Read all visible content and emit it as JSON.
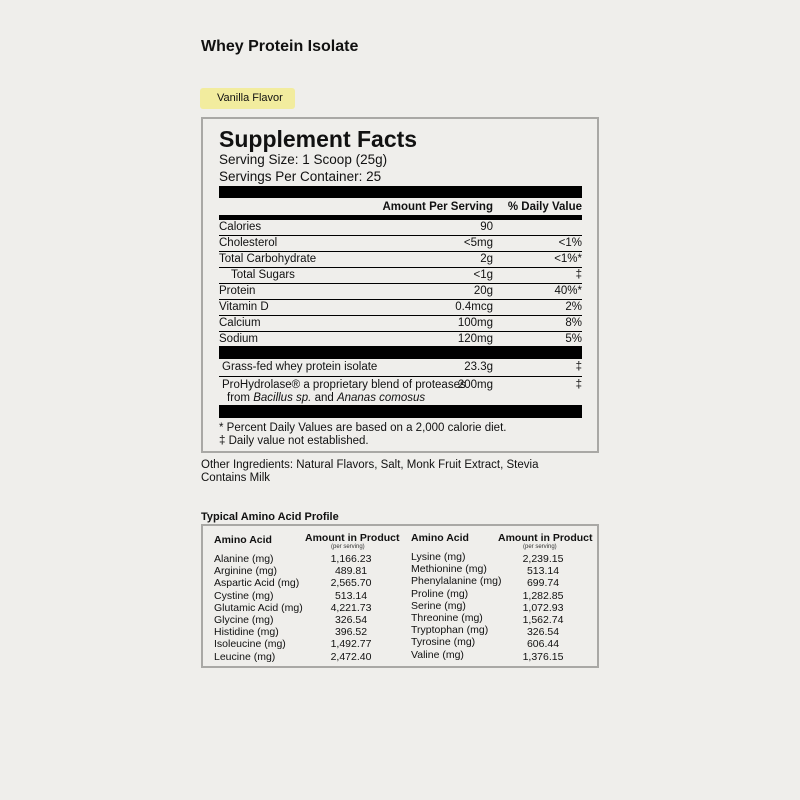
{
  "title": "Whey Protein Isolate",
  "flavor": "Vanilla Flavor",
  "facts": {
    "heading": "Supplement Facts",
    "serving_size": "Serving Size: 1 Scoop (25g)",
    "servings_per_container": "Servings Per Container: 25",
    "col_amount": "Amount Per Serving",
    "col_dv": "% Daily Value",
    "rows": [
      {
        "name": "Calories",
        "amount": "90",
        "dv": ""
      },
      {
        "name": "Cholesterol",
        "amount": "<5mg",
        "dv": "<1%"
      },
      {
        "name": "Total Carbohydrate",
        "amount": "2g",
        "dv": "<1%*"
      },
      {
        "name": "Total Sugars",
        "amount": "<1g",
        "dv": "‡"
      },
      {
        "name": "Protein",
        "amount": "20g",
        "dv": "40%*"
      },
      {
        "name": "Vitamin D",
        "amount": "0.4mcg",
        "dv": "2%"
      },
      {
        "name": "Calcium",
        "amount": "100mg",
        "dv": "8%"
      },
      {
        "name": "Sodium",
        "amount": "120mg",
        "dv": "5%"
      }
    ],
    "blend_rows": [
      {
        "name": "Grass-fed whey protein isolate",
        "amount": "23.3g",
        "dv": "‡"
      },
      {
        "name": "ProHydrolase® a proprietary blend of proteases",
        "name_line2_pre": "from ",
        "species1": "Bacillus sp.",
        "name_line2_mid": " and ",
        "species2": "Ananas comosus",
        "amount": "200mg",
        "dv": "‡"
      }
    ],
    "footnote1": "* Percent Daily Values are based on a 2,000 calorie diet.",
    "footnote2": "‡ Daily value not established."
  },
  "other_ingredients": "Other Ingredients: Natural Flavors, Salt, Monk Fruit Extract, Stevia",
  "allergen": "Contains Milk",
  "amino": {
    "title": "Typical Amino Acid Profile",
    "col_name": "Amino Acid",
    "col_amount": "Amount in Product",
    "col_sub": "(per serving)",
    "left": [
      [
        "Alanine (mg)",
        "1,166.23"
      ],
      [
        "Arginine (mg)",
        "489.81"
      ],
      [
        "Aspartic Acid (mg)",
        "2,565.70"
      ],
      [
        "Cystine (mg)",
        "513.14"
      ],
      [
        "Glutamic Acid (mg)",
        "4,221.73"
      ],
      [
        "Glycine (mg)",
        "326.54"
      ],
      [
        "Histidine (mg)",
        "396.52"
      ],
      [
        "Isoleucine (mg)",
        "1,492.77"
      ],
      [
        "Leucine (mg)",
        "2,472.40"
      ]
    ],
    "right": [
      [
        "Lysine (mg)",
        "2,239.15"
      ],
      [
        "Methionine (mg)",
        "513.14"
      ],
      [
        "Phenylalanine (mg)",
        "699.74"
      ],
      [
        "Proline (mg)",
        "1,282.85"
      ],
      [
        "Serine (mg)",
        "1,072.93"
      ],
      [
        "Threonine (mg)",
        "1,562.74"
      ],
      [
        "Tryptophan (mg)",
        "326.54"
      ],
      [
        "Tyrosine (mg)",
        "606.44"
      ],
      [
        "Valine (mg)",
        "1,376.15"
      ]
    ]
  }
}
